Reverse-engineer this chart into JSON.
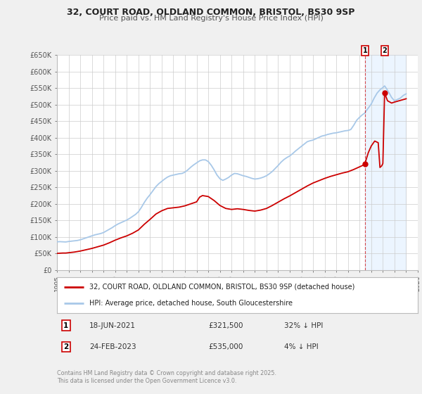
{
  "title": "32, COURT ROAD, OLDLAND COMMON, BRISTOL, BS30 9SP",
  "subtitle": "Price paid vs. HM Land Registry's House Price Index (HPI)",
  "xlim": [
    1995,
    2026
  ],
  "ylim": [
    0,
    650000
  ],
  "yticks": [
    0,
    50000,
    100000,
    150000,
    200000,
    250000,
    300000,
    350000,
    400000,
    450000,
    500000,
    550000,
    600000,
    650000
  ],
  "ytick_labels": [
    "£0",
    "£50K",
    "£100K",
    "£150K",
    "£200K",
    "£250K",
    "£300K",
    "£350K",
    "£400K",
    "£450K",
    "£500K",
    "£550K",
    "£600K",
    "£650K"
  ],
  "hpi_color": "#a8c8e8",
  "price_color": "#cc0000",
  "shade_color": "#ddeeff",
  "legend_label_price": "32, COURT ROAD, OLDLAND COMMON, BRISTOL, BS30 9SP (detached house)",
  "legend_label_hpi": "HPI: Average price, detached house, South Gloucestershire",
  "transaction1_date": "18-JUN-2021",
  "transaction1_price": "£321,500",
  "transaction1_note": "32% ↓ HPI",
  "transaction1_x": 2021.46,
  "transaction2_date": "24-FEB-2023",
  "transaction2_price": "£535,000",
  "transaction2_note": "4% ↓ HPI",
  "transaction2_x": 2023.15,
  "transaction1_price_val": 321500,
  "transaction2_price_val": 535000,
  "footer": "Contains HM Land Registry data © Crown copyright and database right 2025.\nThis data is licensed under the Open Government Licence v3.0.",
  "background_color": "#f0f0f0",
  "plot_bg_color": "#ffffff",
  "grid_color": "#cccccc",
  "hpi_data": [
    [
      1995.0,
      85000
    ],
    [
      1995.25,
      85500
    ],
    [
      1995.5,
      85000
    ],
    [
      1995.75,
      84500
    ],
    [
      1996.0,
      86000
    ],
    [
      1996.25,
      87000
    ],
    [
      1996.5,
      88000
    ],
    [
      1996.75,
      89000
    ],
    [
      1997.0,
      91000
    ],
    [
      1997.25,
      94000
    ],
    [
      1997.5,
      97000
    ],
    [
      1997.75,
      100000
    ],
    [
      1998.0,
      103000
    ],
    [
      1998.25,
      106000
    ],
    [
      1998.5,
      108000
    ],
    [
      1998.75,
      110000
    ],
    [
      1999.0,
      113000
    ],
    [
      1999.25,
      118000
    ],
    [
      1999.5,
      123000
    ],
    [
      1999.75,
      128000
    ],
    [
      2000.0,
      134000
    ],
    [
      2000.25,
      139000
    ],
    [
      2000.5,
      143000
    ],
    [
      2000.75,
      147000
    ],
    [
      2001.0,
      151000
    ],
    [
      2001.25,
      156000
    ],
    [
      2001.5,
      162000
    ],
    [
      2001.75,
      168000
    ],
    [
      2002.0,
      176000
    ],
    [
      2002.25,
      189000
    ],
    [
      2002.5,
      204000
    ],
    [
      2002.75,
      217000
    ],
    [
      2003.0,
      228000
    ],
    [
      2003.25,
      240000
    ],
    [
      2003.5,
      252000
    ],
    [
      2003.75,
      261000
    ],
    [
      2004.0,
      268000
    ],
    [
      2004.25,
      275000
    ],
    [
      2004.5,
      281000
    ],
    [
      2004.75,
      285000
    ],
    [
      2005.0,
      287000
    ],
    [
      2005.25,
      289000
    ],
    [
      2005.5,
      291000
    ],
    [
      2005.75,
      292000
    ],
    [
      2006.0,
      296000
    ],
    [
      2006.25,
      303000
    ],
    [
      2006.5,
      311000
    ],
    [
      2006.75,
      318000
    ],
    [
      2007.0,
      324000
    ],
    [
      2007.25,
      330000
    ],
    [
      2007.5,
      333000
    ],
    [
      2007.75,
      333000
    ],
    [
      2008.0,
      328000
    ],
    [
      2008.25,
      317000
    ],
    [
      2008.5,
      303000
    ],
    [
      2008.75,
      287000
    ],
    [
      2009.0,
      276000
    ],
    [
      2009.25,
      271000
    ],
    [
      2009.5,
      275000
    ],
    [
      2009.75,
      280000
    ],
    [
      2010.0,
      287000
    ],
    [
      2010.25,
      292000
    ],
    [
      2010.5,
      291000
    ],
    [
      2010.75,
      288000
    ],
    [
      2011.0,
      285000
    ],
    [
      2011.25,
      283000
    ],
    [
      2011.5,
      280000
    ],
    [
      2011.75,
      277000
    ],
    [
      2012.0,
      275000
    ],
    [
      2012.25,
      276000
    ],
    [
      2012.5,
      278000
    ],
    [
      2012.75,
      281000
    ],
    [
      2013.0,
      285000
    ],
    [
      2013.25,
      291000
    ],
    [
      2013.5,
      298000
    ],
    [
      2013.75,
      307000
    ],
    [
      2014.0,
      316000
    ],
    [
      2014.25,
      326000
    ],
    [
      2014.5,
      334000
    ],
    [
      2014.75,
      340000
    ],
    [
      2015.0,
      345000
    ],
    [
      2015.25,
      352000
    ],
    [
      2015.5,
      360000
    ],
    [
      2015.75,
      367000
    ],
    [
      2016.0,
      374000
    ],
    [
      2016.25,
      381000
    ],
    [
      2016.5,
      388000
    ],
    [
      2016.75,
      391000
    ],
    [
      2017.0,
      393000
    ],
    [
      2017.25,
      397000
    ],
    [
      2017.5,
      401000
    ],
    [
      2017.75,
      405000
    ],
    [
      2018.0,
      407000
    ],
    [
      2018.25,
      410000
    ],
    [
      2018.5,
      412000
    ],
    [
      2018.75,
      414000
    ],
    [
      2019.0,
      415000
    ],
    [
      2019.25,
      417000
    ],
    [
      2019.5,
      419000
    ],
    [
      2019.75,
      421000
    ],
    [
      2020.0,
      422000
    ],
    [
      2020.25,
      425000
    ],
    [
      2020.5,
      438000
    ],
    [
      2020.75,
      453000
    ],
    [
      2021.0,
      462000
    ],
    [
      2021.25,
      470000
    ],
    [
      2021.46,
      475000
    ],
    [
      2021.5,
      478000
    ],
    [
      2021.75,
      490000
    ],
    [
      2022.0,
      502000
    ],
    [
      2022.25,
      520000
    ],
    [
      2022.5,
      535000
    ],
    [
      2022.75,
      545000
    ],
    [
      2023.0,
      552000
    ],
    [
      2023.15,
      557000
    ],
    [
      2023.25,
      552000
    ],
    [
      2023.5,
      538000
    ],
    [
      2023.75,
      522000
    ],
    [
      2024.0,
      512000
    ],
    [
      2024.25,
      516000
    ],
    [
      2024.5,
      520000
    ],
    [
      2024.75,
      528000
    ],
    [
      2025.0,
      533000
    ]
  ],
  "price_data": [
    [
      1995.0,
      50000
    ],
    [
      1995.25,
      50500
    ],
    [
      1995.5,
      51000
    ],
    [
      1995.75,
      51000
    ],
    [
      1996.0,
      52000
    ],
    [
      1996.5,
      54000
    ],
    [
      1997.0,
      57000
    ],
    [
      1997.5,
      61000
    ],
    [
      1998.0,
      65000
    ],
    [
      1998.5,
      70000
    ],
    [
      1999.0,
      75000
    ],
    [
      1999.5,
      82000
    ],
    [
      2000.0,
      90000
    ],
    [
      2000.5,
      97000
    ],
    [
      2001.0,
      103000
    ],
    [
      2001.5,
      111000
    ],
    [
      2002.0,
      121000
    ],
    [
      2002.5,
      138000
    ],
    [
      2003.0,
      153000
    ],
    [
      2003.5,
      169000
    ],
    [
      2004.0,
      179000
    ],
    [
      2004.5,
      186000
    ],
    [
      2005.0,
      188000
    ],
    [
      2005.5,
      190000
    ],
    [
      2006.0,
      194000
    ],
    [
      2006.5,
      200000
    ],
    [
      2007.0,
      206000
    ],
    [
      2007.25,
      220000
    ],
    [
      2007.5,
      225000
    ],
    [
      2008.0,
      222000
    ],
    [
      2008.5,
      210000
    ],
    [
      2009.0,
      195000
    ],
    [
      2009.5,
      186000
    ],
    [
      2010.0,
      183000
    ],
    [
      2010.5,
      185000
    ],
    [
      2011.0,
      183000
    ],
    [
      2011.5,
      180000
    ],
    [
      2012.0,
      178000
    ],
    [
      2012.5,
      181000
    ],
    [
      2013.0,
      186000
    ],
    [
      2013.5,
      195000
    ],
    [
      2014.0,
      205000
    ],
    [
      2014.5,
      215000
    ],
    [
      2015.0,
      224000
    ],
    [
      2015.5,
      234000
    ],
    [
      2016.0,
      244000
    ],
    [
      2016.5,
      254000
    ],
    [
      2017.0,
      263000
    ],
    [
      2017.5,
      270000
    ],
    [
      2018.0,
      277000
    ],
    [
      2018.5,
      283000
    ],
    [
      2019.0,
      288000
    ],
    [
      2019.5,
      293000
    ],
    [
      2020.0,
      297000
    ],
    [
      2020.5,
      304000
    ],
    [
      2021.0,
      312000
    ],
    [
      2021.25,
      316000
    ],
    [
      2021.46,
      321500
    ],
    [
      2021.6,
      338000
    ],
    [
      2021.75,
      355000
    ],
    [
      2022.0,
      375000
    ],
    [
      2022.3,
      390000
    ],
    [
      2022.6,
      385000
    ],
    [
      2022.75,
      310000
    ],
    [
      2022.9,
      315000
    ],
    [
      2023.0,
      322000
    ],
    [
      2023.15,
      535000
    ],
    [
      2023.4,
      512000
    ],
    [
      2023.75,
      505000
    ],
    [
      2024.0,
      508000
    ],
    [
      2024.5,
      513000
    ],
    [
      2025.0,
      518000
    ]
  ]
}
